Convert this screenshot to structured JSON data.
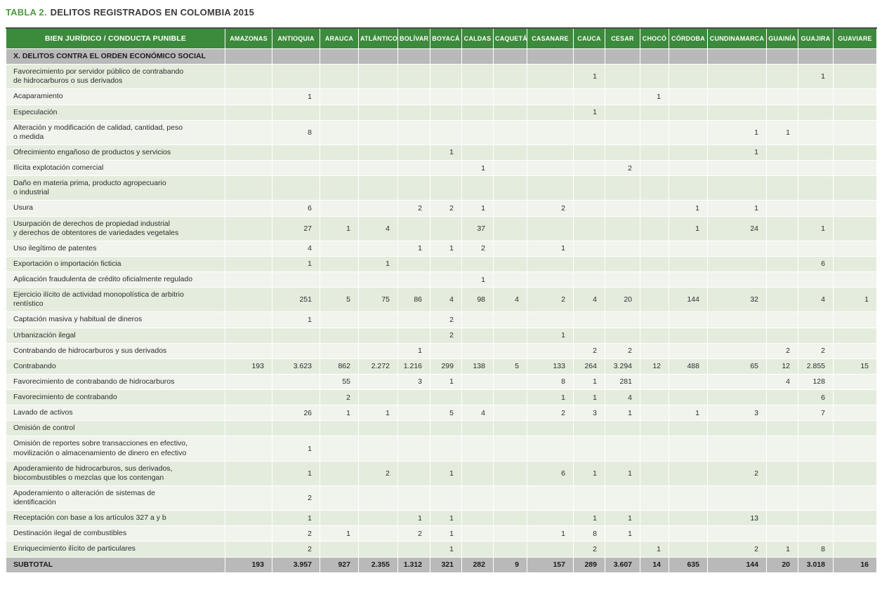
{
  "title": {
    "prefix": "TABLA 2.",
    "text": "DELITOS REGISTRADOS EN COLOMBIA 2015"
  },
  "colors": {
    "title_green": "#4c9b3f",
    "header_green": "#3c8a3c",
    "section_gray": "#b9b9b9",
    "row_dark": "#e4ecdd",
    "row_light": "#f0f4ec"
  },
  "table": {
    "label_header": "BIEN JURÍDICO / CONDUCTA PUNIBLE",
    "columns": [
      "AMAZONAS",
      "ANTIOQUIA",
      "ARAUCA",
      "ATLÁNTICO",
      "BOLÍVAR",
      "BOYACÁ",
      "CALDAS",
      "CAQUETÁ",
      "CASANARE",
      "CAUCA",
      "CESAR",
      "CHOCÓ",
      "CÓRDOBA",
      "CUNDINAMARCA",
      "GUAINÍA",
      "GUAJIRA",
      "GUAVIARE"
    ],
    "section": "X. DELITOS CONTRA EL ORDEN ECONÓMICO SOCIAL",
    "rows": [
      {
        "label": "Favorecimiento por servidor público de contrabando\nde hidrocarburos o sus derivados",
        "values": [
          "",
          "",
          "",
          "",
          "",
          "",
          "",
          "",
          "",
          "1",
          "",
          "",
          "",
          "",
          "",
          "1",
          ""
        ]
      },
      {
        "label": "Acaparamiento",
        "values": [
          "",
          "1",
          "",
          "",
          "",
          "",
          "",
          "",
          "",
          "",
          "",
          "1",
          "",
          "",
          "",
          "",
          ""
        ]
      },
      {
        "label": "Especulación",
        "values": [
          "",
          "",
          "",
          "",
          "",
          "",
          "",
          "",
          "",
          "1",
          "",
          "",
          "",
          "",
          "",
          "",
          ""
        ]
      },
      {
        "label": "Alteración y modificación de calidad, cantidad, peso\no medida",
        "values": [
          "",
          "8",
          "",
          "",
          "",
          "",
          "",
          "",
          "",
          "",
          "",
          "",
          "",
          "1",
          "1",
          "",
          ""
        ]
      },
      {
        "label": "Ofrecimiento engañoso de productos y servicios",
        "values": [
          "",
          "",
          "",
          "",
          "",
          "1",
          "",
          "",
          "",
          "",
          "",
          "",
          "",
          "1",
          "",
          "",
          ""
        ]
      },
      {
        "label": "Ilícita explotación comercial",
        "values": [
          "",
          "",
          "",
          "",
          "",
          "",
          "1",
          "",
          "",
          "",
          "2",
          "",
          "",
          "",
          "",
          "",
          ""
        ]
      },
      {
        "label": "Daño en materia prima, producto agropecuario\no industrial",
        "values": [
          "",
          "",
          "",
          "",
          "",
          "",
          "",
          "",
          "",
          "",
          "",
          "",
          "",
          "",
          "",
          "",
          ""
        ]
      },
      {
        "label": "Usura",
        "values": [
          "",
          "6",
          "",
          "",
          "2",
          "2",
          "1",
          "",
          "2",
          "",
          "",
          "",
          "1",
          "1",
          "",
          "",
          ""
        ]
      },
      {
        "label": "Usurpación de derechos de propiedad industrial\ny derechos de obtentores de variedades vegetales",
        "values": [
          "",
          "27",
          "1",
          "4",
          "",
          "",
          "37",
          "",
          "",
          "",
          "",
          "",
          "1",
          "24",
          "",
          "1",
          ""
        ]
      },
      {
        "label": "Uso ilegítimo de patentes",
        "values": [
          "",
          "4",
          "",
          "",
          "1",
          "1",
          "2",
          "",
          "1",
          "",
          "",
          "",
          "",
          "",
          "",
          "",
          ""
        ]
      },
      {
        "label": "Exportación o importación ficticia",
        "values": [
          "",
          "1",
          "",
          "1",
          "",
          "",
          "",
          "",
          "",
          "",
          "",
          "",
          "",
          "",
          "",
          "6",
          ""
        ]
      },
      {
        "label": "Aplicación fraudulenta de crédito oficialmente regulado",
        "values": [
          "",
          "",
          "",
          "",
          "",
          "",
          "1",
          "",
          "",
          "",
          "",
          "",
          "",
          "",
          "",
          "",
          ""
        ]
      },
      {
        "label": "Ejercicio ilícito de actividad monopolística de arbitrio\nrentístico",
        "values": [
          "",
          "251",
          "5",
          "75",
          "86",
          "4",
          "98",
          "4",
          "2",
          "4",
          "20",
          "",
          "144",
          "32",
          "",
          "4",
          "1"
        ]
      },
      {
        "label": "Captación masiva y habitual de dineros",
        "values": [
          "",
          "1",
          "",
          "",
          "",
          "2",
          "",
          "",
          "",
          "",
          "",
          "",
          "",
          "",
          "",
          "",
          ""
        ]
      },
      {
        "label": "Urbanización ilegal",
        "values": [
          "",
          "",
          "",
          "",
          "",
          "2",
          "",
          "",
          "1",
          "",
          "",
          "",
          "",
          "",
          "",
          "",
          ""
        ]
      },
      {
        "label": "Contrabando de hidrocarburos y sus derivados",
        "values": [
          "",
          "",
          "",
          "",
          "1",
          "",
          "",
          "",
          "",
          "2",
          "2",
          "",
          "",
          "",
          "2",
          "2",
          ""
        ]
      },
      {
        "label": "Contrabando",
        "values": [
          "193",
          "3.623",
          "862",
          "2.272",
          "1.216",
          "299",
          "138",
          "5",
          "133",
          "264",
          "3.294",
          "12",
          "488",
          "65",
          "12",
          "2.855",
          "15"
        ]
      },
      {
        "label": "Favorecimiento de contrabando de hidrocarburos",
        "values": [
          "",
          "",
          "55",
          "",
          "3",
          "1",
          "",
          "",
          "8",
          "1",
          "281",
          "",
          "",
          "",
          "4",
          "128",
          ""
        ]
      },
      {
        "label": "Favorecimiento de contrabando",
        "values": [
          "",
          "",
          "2",
          "",
          "",
          "",
          "",
          "",
          "1",
          "1",
          "4",
          "",
          "",
          "",
          "",
          "6",
          ""
        ]
      },
      {
        "label": "Lavado de activos",
        "values": [
          "",
          "26",
          "1",
          "1",
          "",
          "5",
          "4",
          "",
          "2",
          "3",
          "1",
          "",
          "1",
          "3",
          "",
          "7",
          ""
        ]
      },
      {
        "label": "Omisión de control",
        "values": [
          "",
          "",
          "",
          "",
          "",
          "",
          "",
          "",
          "",
          "",
          "",
          "",
          "",
          "",
          "",
          "",
          ""
        ]
      },
      {
        "label": "Omisión de reportes sobre transacciones en efectivo,\nmovilización o almacenamiento de dinero en efectivo",
        "values": [
          "",
          "1",
          "",
          "",
          "",
          "",
          "",
          "",
          "",
          "",
          "",
          "",
          "",
          "",
          "",
          "",
          ""
        ]
      },
      {
        "label": "Apoderamiento de hidrocarburos, sus derivados,\nbiocombustibles o mezclas que los contengan",
        "values": [
          "",
          "1",
          "",
          "2",
          "",
          "1",
          "",
          "",
          "6",
          "1",
          "1",
          "",
          "",
          "2",
          "",
          "",
          ""
        ]
      },
      {
        "label": "Apoderamiento o alteración de sistemas de\nidentificación",
        "values": [
          "",
          "2",
          "",
          "",
          "",
          "",
          "",
          "",
          "",
          "",
          "",
          "",
          "",
          "",
          "",
          "",
          ""
        ]
      },
      {
        "label": "Receptación con base a los artículos 327 a y b",
        "values": [
          "",
          "1",
          "",
          "",
          "1",
          "1",
          "",
          "",
          "",
          "1",
          "1",
          "",
          "",
          "13",
          "",
          "",
          ""
        ]
      },
      {
        "label": "Destinación ilegal de combustibles",
        "values": [
          "",
          "2",
          "1",
          "",
          "2",
          "1",
          "",
          "",
          "1",
          "8",
          "1",
          "",
          "",
          "",
          "",
          "",
          ""
        ]
      },
      {
        "label": "Enriquecimiento ilícito de particulares",
        "values": [
          "",
          "2",
          "",
          "",
          "",
          "1",
          "",
          "",
          "",
          "2",
          "",
          "1",
          "",
          "2",
          "1",
          "8",
          ""
        ]
      }
    ],
    "subtotal": {
      "label": "SUBTOTAL",
      "values": [
        "193",
        "3.957",
        "927",
        "2.355",
        "1.312",
        "321",
        "282",
        "9",
        "157",
        "289",
        "3.607",
        "14",
        "635",
        "144",
        "20",
        "3.018",
        "16"
      ]
    }
  }
}
